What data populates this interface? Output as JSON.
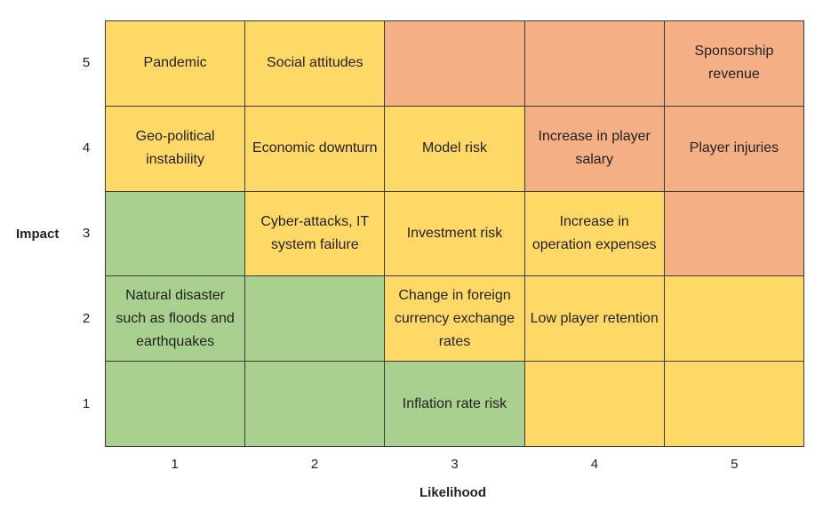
{
  "chart_data": {
    "type": "heatmap",
    "title": "",
    "xlabel": "Likelihood",
    "ylabel": "Impact",
    "x_ticks": [
      "1",
      "2",
      "3",
      "4",
      "5"
    ],
    "y_ticks": [
      "5",
      "4",
      "3",
      "2",
      "1"
    ],
    "colors": {
      "green": "#a9d08e",
      "yellow": "#ffd966",
      "orange": "#f4b084"
    },
    "rows": [
      {
        "impact": 5,
        "cells": [
          {
            "likelihood": 1,
            "color": "yellow",
            "label": "Pandemic"
          },
          {
            "likelihood": 2,
            "color": "yellow",
            "label": "Social attitudes"
          },
          {
            "likelihood": 3,
            "color": "orange",
            "label": ""
          },
          {
            "likelihood": 4,
            "color": "orange",
            "label": ""
          },
          {
            "likelihood": 5,
            "color": "orange",
            "label": "Sponsorship revenue"
          }
        ]
      },
      {
        "impact": 4,
        "cells": [
          {
            "likelihood": 1,
            "color": "yellow",
            "label": "Geo-political instability"
          },
          {
            "likelihood": 2,
            "color": "yellow",
            "label": "Economic downturn"
          },
          {
            "likelihood": 3,
            "color": "yellow",
            "label": "Model risk"
          },
          {
            "likelihood": 4,
            "color": "orange",
            "label": "Increase in player salary"
          },
          {
            "likelihood": 5,
            "color": "orange",
            "label": "Player injuries"
          }
        ]
      },
      {
        "impact": 3,
        "cells": [
          {
            "likelihood": 1,
            "color": "green",
            "label": ""
          },
          {
            "likelihood": 2,
            "color": "yellow",
            "label": "Cyber-attacks, IT system failure"
          },
          {
            "likelihood": 3,
            "color": "yellow",
            "label": "Investment risk"
          },
          {
            "likelihood": 4,
            "color": "yellow",
            "label": "Increase in operation expenses"
          },
          {
            "likelihood": 5,
            "color": "orange",
            "label": ""
          }
        ]
      },
      {
        "impact": 2,
        "cells": [
          {
            "likelihood": 1,
            "color": "green",
            "label": "Natural disaster such as floods and earthquakes"
          },
          {
            "likelihood": 2,
            "color": "green",
            "label": ""
          },
          {
            "likelihood": 3,
            "color": "yellow",
            "label": "Change in foreign currency exchange rates"
          },
          {
            "likelihood": 4,
            "color": "yellow",
            "label": "Low player retention"
          },
          {
            "likelihood": 5,
            "color": "yellow",
            "label": ""
          }
        ]
      },
      {
        "impact": 1,
        "cells": [
          {
            "likelihood": 1,
            "color": "green",
            "label": ""
          },
          {
            "likelihood": 2,
            "color": "green",
            "label": ""
          },
          {
            "likelihood": 3,
            "color": "green",
            "label": "Inflation rate risk"
          },
          {
            "likelihood": 4,
            "color": "yellow",
            "label": ""
          },
          {
            "likelihood": 5,
            "color": "yellow",
            "label": ""
          }
        ]
      }
    ]
  }
}
